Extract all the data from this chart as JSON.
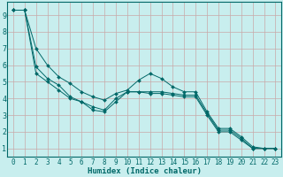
{
  "xlabel": "Humidex (Indice chaleur)",
  "bg_color": "#c8eeee",
  "grid_color": "#c8a8a8",
  "line_color": "#006868",
  "spine_color": "#006868",
  "xlim": [
    -0.5,
    23.5
  ],
  "ylim": [
    0.5,
    9.8
  ],
  "xticks": [
    0,
    1,
    2,
    3,
    4,
    5,
    6,
    7,
    8,
    9,
    10,
    11,
    12,
    13,
    14,
    15,
    16,
    17,
    18,
    19,
    20,
    21,
    22,
    23
  ],
  "yticks": [
    1,
    2,
    3,
    4,
    5,
    6,
    7,
    8,
    9
  ],
  "line1_x": [
    0,
    1,
    2,
    3,
    4,
    5,
    6,
    7,
    8,
    9,
    10,
    11,
    12,
    13,
    14,
    15,
    16,
    17,
    18,
    19,
    20,
    21,
    22,
    23
  ],
  "line1_y": [
    9.3,
    9.3,
    7.0,
    6.0,
    5.3,
    4.9,
    4.4,
    4.1,
    3.9,
    4.3,
    4.5,
    5.1,
    5.5,
    5.2,
    4.7,
    4.4,
    4.4,
    3.2,
    2.2,
    2.2,
    1.7,
    1.1,
    1.0,
    1.0
  ],
  "line2_x": [
    0,
    1,
    2,
    3,
    4,
    5,
    6,
    7,
    8,
    9,
    10,
    11,
    12,
    13,
    14,
    15,
    16,
    17,
    18,
    19,
    20,
    21,
    22,
    23
  ],
  "line2_y": [
    9.3,
    9.3,
    5.9,
    5.2,
    4.8,
    4.1,
    3.8,
    3.3,
    3.2,
    3.8,
    4.4,
    4.4,
    4.4,
    4.4,
    4.3,
    4.2,
    4.2,
    3.1,
    2.1,
    2.1,
    1.6,
    1.0,
    1.0,
    1.0
  ],
  "line3_x": [
    0,
    1,
    2,
    3,
    4,
    5,
    6,
    7,
    8,
    9,
    10,
    11,
    12,
    13,
    14,
    15,
    16,
    17,
    18,
    19,
    20,
    21,
    22,
    23
  ],
  "line3_y": [
    9.3,
    9.3,
    5.5,
    5.0,
    4.5,
    4.0,
    3.8,
    3.5,
    3.3,
    4.0,
    4.4,
    4.4,
    4.3,
    4.3,
    4.2,
    4.1,
    4.1,
    3.0,
    2.0,
    2.0,
    1.5,
    1.0,
    1.0,
    1.0
  ],
  "tick_fontsize": 5.5,
  "xlabel_fontsize": 6.5,
  "marker_size": 2.0,
  "line_width": 0.7
}
